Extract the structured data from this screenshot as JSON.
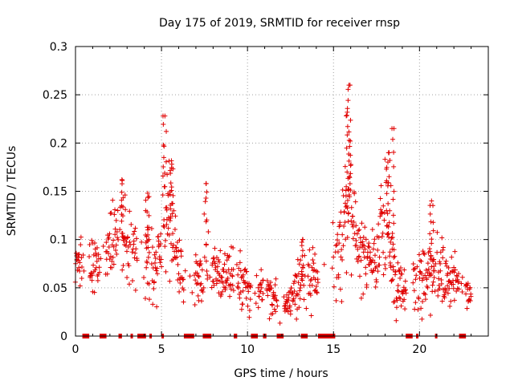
{
  "chart_data": {
    "type": "scatter",
    "title": "Day 175 of 2019, SRMTID for receiver rnsp",
    "xlabel": "GPS time / hours",
    "ylabel": "SRMTID / TECUs",
    "xlim": [
      0,
      24
    ],
    "ylim": [
      0,
      0.3
    ],
    "grid": true,
    "marker": "+",
    "color": "#e00000",
    "x_ticks": [
      0,
      5,
      10,
      15,
      20
    ],
    "x_tick_labels": [
      "0",
      "5",
      "10",
      "15",
      "20"
    ],
    "y_ticks": [
      0,
      0.05,
      0.1,
      0.15,
      0.2,
      0.25,
      0.3
    ],
    "y_tick_labels": [
      "0",
      "0.05",
      "0.1",
      "0.15",
      "0.2",
      "0.25",
      "0.3"
    ],
    "envelope": {
      "x": [
        0,
        0.5,
        1,
        1.5,
        2,
        2.5,
        3,
        3.5,
        4,
        4.5,
        5,
        5.3,
        5.6,
        6,
        6.5,
        7,
        8,
        9,
        10,
        11,
        12,
        12.5,
        13,
        13.5,
        14,
        14.5,
        15,
        15.5,
        16,
        16.5,
        17,
        17.5,
        18,
        18.5,
        19,
        19.5,
        20,
        20.5,
        21,
        21.5,
        22,
        22.5,
        23
      ],
      "center": [
        0.07,
        0.075,
        0.07,
        0.08,
        0.09,
        0.1,
        0.1,
        0.085,
        0.08,
        0.08,
        0.09,
        0.13,
        0.12,
        0.07,
        0.06,
        0.06,
        0.065,
        0.06,
        0.05,
        0.045,
        0.04,
        0.04,
        0.05,
        0.055,
        0.06,
        0.07,
        0.08,
        0.1,
        0.15,
        0.09,
        0.08,
        0.07,
        0.12,
        0.06,
        0.05,
        0.055,
        0.06,
        0.06,
        0.07,
        0.055,
        0.06,
        0.05,
        0.045
      ],
      "spread": [
        0.02,
        0.02,
        0.02,
        0.025,
        0.03,
        0.03,
        0.03,
        0.025,
        0.03,
        0.03,
        0.03,
        0.05,
        0.04,
        0.02,
        0.02,
        0.02,
        0.02,
        0.02,
        0.02,
        0.015,
        0.015,
        0.015,
        0.02,
        0.02,
        0.02,
        0.02,
        0.025,
        0.035,
        0.05,
        0.03,
        0.025,
        0.025,
        0.045,
        0.025,
        0.02,
        0.02,
        0.025,
        0.025,
        0.03,
        0.02,
        0.02,
        0.015,
        0.01
      ]
    },
    "peaks": [
      {
        "x": 2.7,
        "y": 0.162
      },
      {
        "x": 4.2,
        "y": 0.148
      },
      {
        "x": 5.2,
        "y": 0.228
      },
      {
        "x": 5.6,
        "y": 0.178
      },
      {
        "x": 7.6,
        "y": 0.158
      },
      {
        "x": 15.9,
        "y": 0.26
      },
      {
        "x": 15.8,
        "y": 0.232
      },
      {
        "x": 18.4,
        "y": 0.215
      },
      {
        "x": 18.2,
        "y": 0.19
      },
      {
        "x": 20.7,
        "y": 0.14
      },
      {
        "x": 13.2,
        "y": 0.1
      }
    ],
    "data_gaps_on_axis": [
      [
        0.4,
        0.8
      ],
      [
        1.4,
        1.8
      ],
      [
        2.5,
        2.7
      ],
      [
        3.2,
        3.3
      ],
      [
        3.6,
        4.1
      ],
      [
        4.3,
        4.4
      ],
      [
        5.0,
        5.1
      ],
      [
        6.3,
        6.9
      ],
      [
        7.4,
        7.9
      ],
      [
        9.2,
        9.4
      ],
      [
        10.2,
        10.6
      ],
      [
        10.9,
        11.1
      ],
      [
        11.7,
        12.1
      ],
      [
        13.1,
        13.5
      ],
      [
        14.1,
        15.1
      ],
      [
        19.2,
        19.6
      ],
      [
        19.8,
        19.9
      ],
      [
        20.9,
        21.0
      ],
      [
        22.3,
        22.7
      ]
    ]
  }
}
